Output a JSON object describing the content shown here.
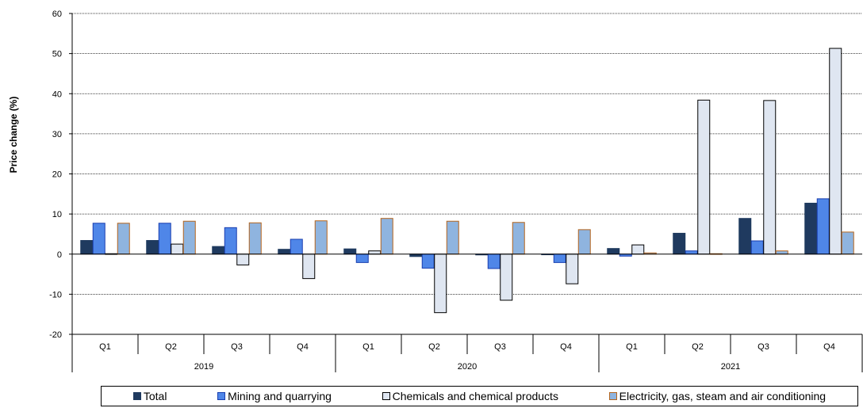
{
  "chart_data": {
    "type": "bar",
    "ylabel": "Price change (%)",
    "ylim": [
      -20,
      60
    ],
    "yticks": [
      -20,
      -10,
      0,
      10,
      20,
      30,
      40,
      50,
      60
    ],
    "grid": "horizontal dotted",
    "legend_position": "bottom",
    "categories": [
      "Q1",
      "Q2",
      "Q3",
      "Q4",
      "Q1",
      "Q2",
      "Q3",
      "Q4",
      "Q1",
      "Q2",
      "Q3",
      "Q4"
    ],
    "years": [
      {
        "label": "2019"
      },
      {
        "label": "2020"
      },
      {
        "label": "2021"
      }
    ],
    "series": [
      {
        "name": "Total",
        "color": "#1f3a5f",
        "border": "#1f3a5f",
        "values": [
          3.4,
          3.4,
          1.9,
          1.2,
          1.3,
          -0.6,
          -0.2,
          0.0,
          1.4,
          5.2,
          8.9,
          12.7
        ]
      },
      {
        "name": "Mining and quarrying",
        "color": "#4f86e8",
        "border": "#1a3fb0",
        "values": [
          7.7,
          7.7,
          6.6,
          3.7,
          -2.1,
          -3.5,
          -3.6,
          -2.1,
          -0.5,
          0.8,
          3.3,
          13.8
        ]
      },
      {
        "name": "Chemicals and chemical products",
        "color": "#dfe6f1",
        "border": "#000000",
        "values": [
          0.1,
          2.5,
          -2.7,
          -6.1,
          0.8,
          -14.6,
          -11.5,
          -7.4,
          2.3,
          38.4,
          38.3,
          51.3
        ]
      },
      {
        "name": "Electricity, gas, steam and air conditioning",
        "color": "#8fb4df",
        "border": "#b5651d",
        "values": [
          7.7,
          8.2,
          7.8,
          8.3,
          8.9,
          8.2,
          7.9,
          6.1,
          0.3,
          0.1,
          0.8,
          5.5
        ]
      }
    ]
  }
}
